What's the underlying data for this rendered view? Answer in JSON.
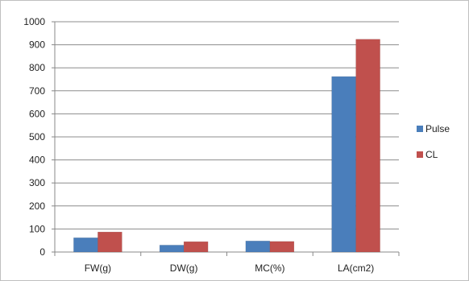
{
  "chart_data": {
    "type": "bar",
    "categories": [
      "FW(g)",
      "DW(g)",
      "MC(%)",
      "LA(cm2)"
    ],
    "series": [
      {
        "name": "Pulse",
        "values": [
          62,
          30,
          48,
          762
        ],
        "color": "#4a7ebb"
      },
      {
        "name": "CL",
        "values": [
          87,
          45,
          46,
          924
        ],
        "color": "#c0504d"
      }
    ],
    "y_ticks": [
      0,
      100,
      200,
      300,
      400,
      500,
      600,
      700,
      800,
      900,
      1000
    ],
    "ylim": [
      0,
      1000
    ],
    "grid": true,
    "legend_position": "right",
    "title": "",
    "xlabel": "",
    "ylabel": ""
  }
}
